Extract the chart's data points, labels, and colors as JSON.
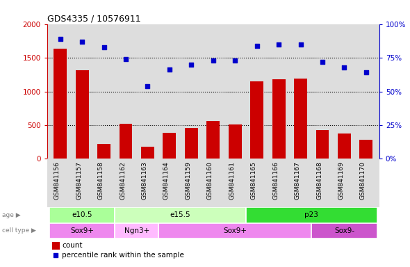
{
  "title": "GDS4335 / 10576911",
  "samples": [
    "GSM841156",
    "GSM841157",
    "GSM841158",
    "GSM841162",
    "GSM841163",
    "GSM841164",
    "GSM841159",
    "GSM841160",
    "GSM841161",
    "GSM841165",
    "GSM841166",
    "GSM841167",
    "GSM841168",
    "GSM841169",
    "GSM841170"
  ],
  "counts": [
    1630,
    1310,
    220,
    520,
    175,
    385,
    460,
    560,
    505,
    1145,
    1185,
    1195,
    430,
    375,
    280
  ],
  "percentiles": [
    89,
    87,
    83,
    74,
    54,
    66,
    70,
    73,
    73,
    84,
    85,
    85,
    72,
    68,
    64
  ],
  "age_groups": [
    {
      "label": "e10.5",
      "start": 0,
      "end": 3,
      "color": "#aaff99"
    },
    {
      "label": "e15.5",
      "start": 3,
      "end": 9,
      "color": "#ccffbb"
    },
    {
      "label": "p23",
      "start": 9,
      "end": 15,
      "color": "#33dd33"
    }
  ],
  "cell_type_groups": [
    {
      "label": "Sox9+",
      "start": 0,
      "end": 3,
      "color": "#ee88ee"
    },
    {
      "label": "Ngn3+",
      "start": 3,
      "end": 5,
      "color": "#ffbbff"
    },
    {
      "label": "Sox9+",
      "start": 5,
      "end": 12,
      "color": "#ee88ee"
    },
    {
      "label": "Sox9-",
      "start": 12,
      "end": 15,
      "color": "#cc55cc"
    }
  ],
  "ylim_left": [
    0,
    2000
  ],
  "ylim_right": [
    0,
    100
  ],
  "yticks_left": [
    0,
    500,
    1000,
    1500,
    2000
  ],
  "yticks_right": [
    0,
    25,
    50,
    75,
    100
  ],
  "ytick_right_labels": [
    "0%",
    "25%",
    "50%",
    "75%",
    "100%"
  ],
  "bar_color": "#cc0000",
  "dot_color": "#0000cc",
  "bg_color": "#dddddd",
  "plot_bg": "#ffffff",
  "grid_color": "black",
  "grid_yticks": [
    500,
    1000,
    1500
  ],
  "legend_count_label": "count",
  "legend_pct_label": "percentile rank within the sample"
}
